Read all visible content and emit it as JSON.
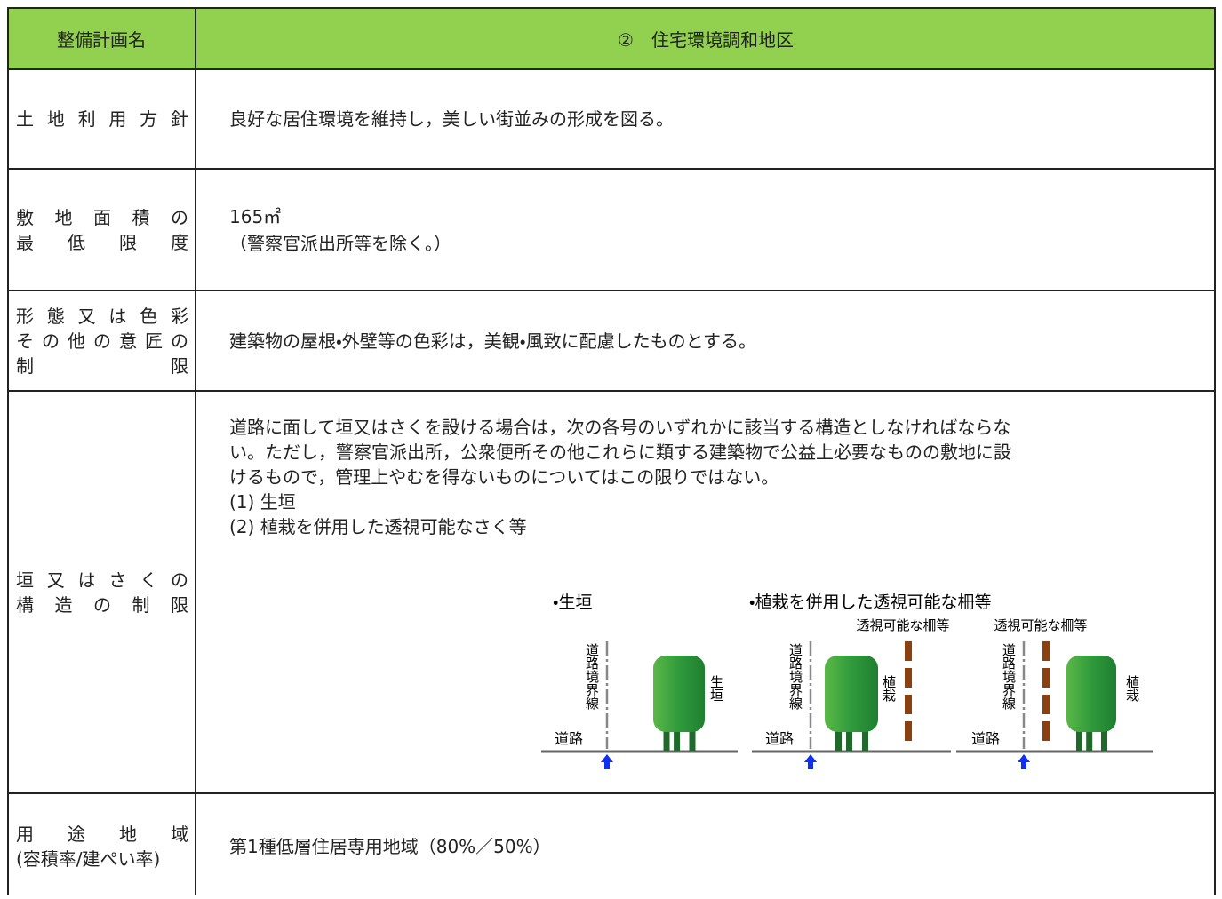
{
  "header": {
    "col1": "整備計画名",
    "col2": "②　住宅環境調和地区"
  },
  "rows": [
    {
      "label": [
        "土地利用方針"
      ],
      "content": [
        "良好な居住環境を維持し，美しい街並みの形成を図る。"
      ]
    },
    {
      "label": [
        "敷地面積の",
        "最低限度"
      ],
      "content": [
        "165㎡",
        "（警察官派出所等を除く。）"
      ]
    },
    {
      "label": [
        "形態又は色彩",
        "その他の意匠の",
        "制限"
      ],
      "content": [
        "建築物の屋根・外壁等の色彩は，美観・風致に配慮したものとする。"
      ]
    },
    {
      "label": [
        "垣又はさくの",
        "構造の制限"
      ],
      "content": [
        "道路に面して垣又はさくを設ける場合は，次の各号のいずれかに該当する構造としなければならな",
        "い。ただし，警察官派出所，公衆便所その他これらに類する建築物で公益上必要なものの敷地に設",
        "けるもので，管理上やむを得ないものについてはこの限りではない。",
        "(1) 生垣",
        "(2) 植栽を併用した透視可能なさく等"
      ],
      "diagram": {
        "panel_titles": [
          "・生垣",
          "・植栽を併用した透視可能な柵等"
        ],
        "fence_labels": [
          "透視可能な柵等",
          "透視可能な柵等"
        ],
        "boundary_labels": [
          "道路境界線",
          "道路境界線",
          "道路境界線"
        ],
        "road_labels": [
          "道路",
          "道路",
          "道路"
        ],
        "plant_labels": [
          "生垣",
          "植栽",
          "植栽"
        ]
      }
    },
    {
      "label": [
        "用途地域",
        "(容積率/建ぺい率)"
      ],
      "content": [
        "第1種低層住居専用地域（80%／50%）"
      ]
    }
  ]
}
